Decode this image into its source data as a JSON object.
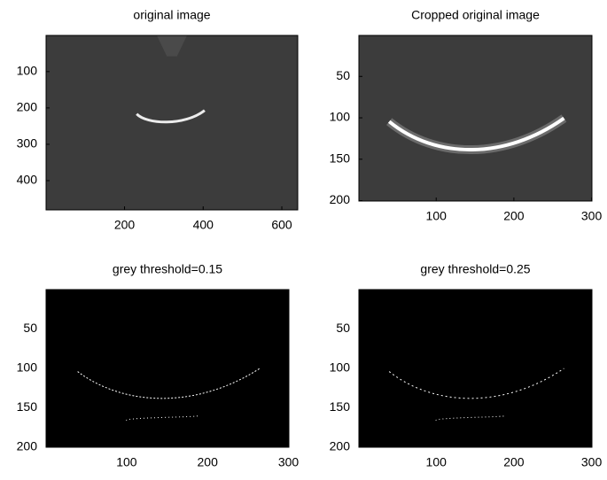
{
  "chart_data": [
    {
      "type": "image",
      "title": "original image",
      "xlim": [
        0.5,
        640.5
      ],
      "ylim": [
        0.5,
        480.5
      ],
      "y_reversed": true,
      "xticks": [
        200,
        400,
        600
      ],
      "yticks": [
        100,
        200,
        300,
        400
      ],
      "background": "#3c3c3c",
      "color": "#ffffff"
    },
    {
      "type": "image",
      "title": "Cropped original image",
      "xlim": [
        0.5,
        300.5
      ],
      "ylim": [
        0.5,
        200.5
      ],
      "y_reversed": true,
      "xticks": [
        100,
        200,
        300
      ],
      "yticks": [
        50,
        100,
        150,
        200
      ],
      "background": "#3c3c3c",
      "color": "#ffffff"
    },
    {
      "type": "image",
      "title": "grey threshold=0.15",
      "xlim": [
        0.5,
        300.5
      ],
      "ylim": [
        0.5,
        200.5
      ],
      "y_reversed": true,
      "xticks": [
        100,
        200,
        300
      ],
      "yticks": [
        50,
        100,
        150,
        200
      ],
      "background": "#000000",
      "color": "#ffffff"
    },
    {
      "type": "image",
      "title": "grey threshold=0.25",
      "xlim": [
        0.5,
        300.5
      ],
      "ylim": [
        0.5,
        200.5
      ],
      "y_reversed": true,
      "xticks": [
        100,
        200,
        300
      ],
      "yticks": [
        50,
        100,
        150,
        200
      ],
      "background": "#000000",
      "color": "#ffffff"
    }
  ]
}
